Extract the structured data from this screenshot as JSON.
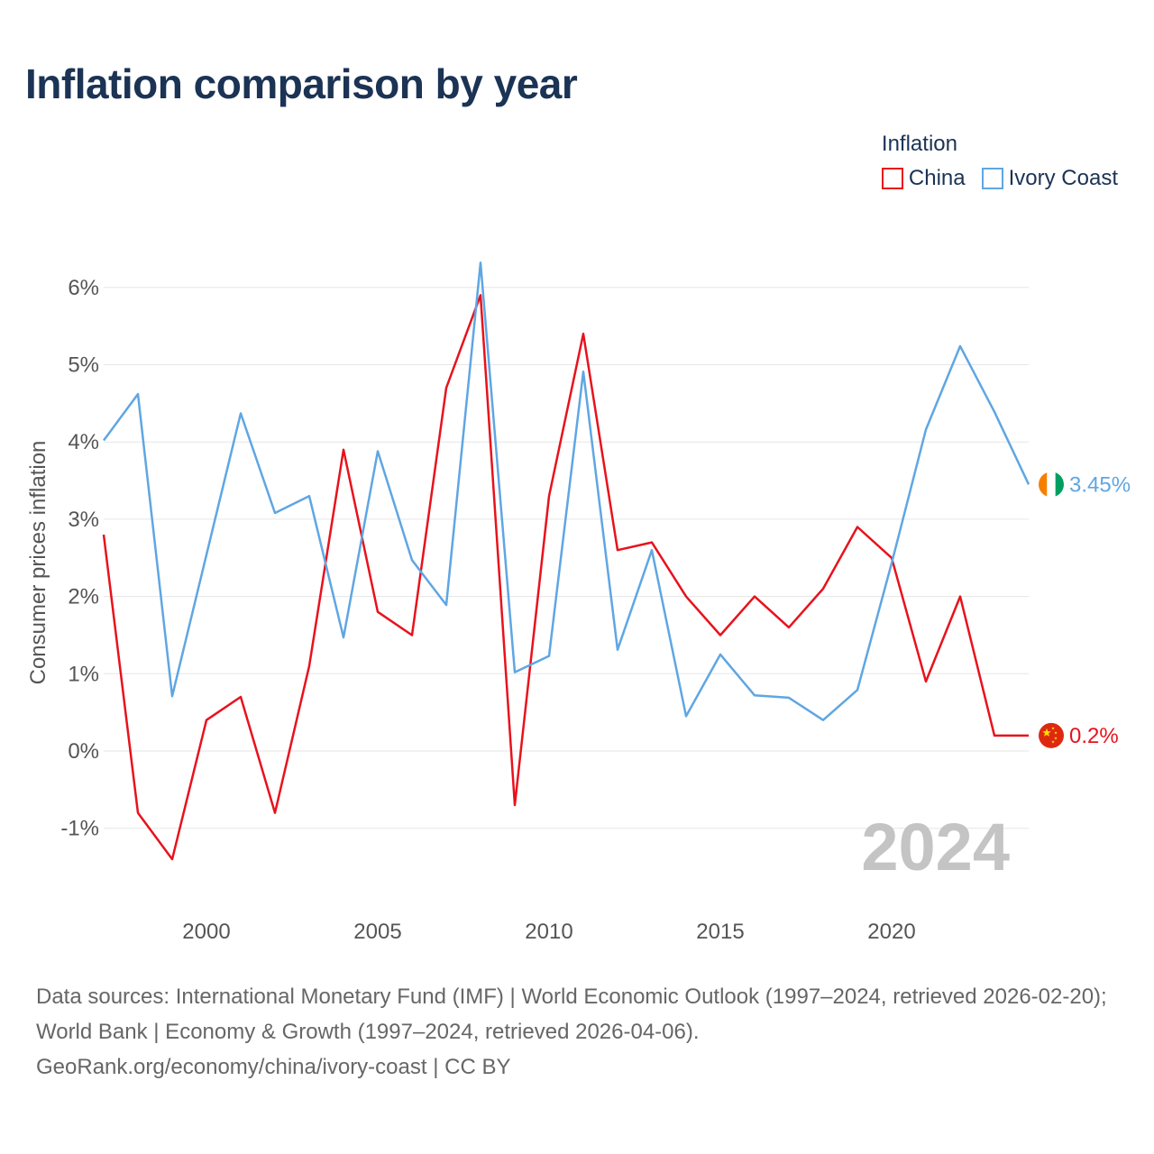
{
  "title": "Inflation comparison by year",
  "legend": {
    "title": "Inflation",
    "items": [
      {
        "label": "China",
        "color": "#e8121c"
      },
      {
        "label": "Ivory Coast",
        "color": "#5fa6e3"
      }
    ]
  },
  "source": {
    "line1": "Data sources: International Monetary Fund (IMF) | World Economic Outlook (1997–2024, retrieved 2026-02-20); World Bank | Economy & Growth (1997–2024, retrieved 2026-04-06).",
    "line2": "GeoRank.org/economy/china/ivory-coast | CC BY"
  },
  "chart_data": {
    "type": "line",
    "title": "Inflation comparison by year",
    "xlabel": "",
    "ylabel": "Consumer prices inflation",
    "x": [
      1997,
      1998,
      1999,
      2000,
      2001,
      2002,
      2003,
      2004,
      2005,
      2006,
      2007,
      2008,
      2009,
      2010,
      2011,
      2012,
      2013,
      2014,
      2015,
      2016,
      2017,
      2018,
      2019,
      2020,
      2021,
      2022,
      2023,
      2024
    ],
    "xlim": [
      1997,
      2024
    ],
    "ylim": [
      -1.8,
      6.4
    ],
    "x_ticks": [
      2000,
      2005,
      2010,
      2015,
      2020
    ],
    "y_ticks": [
      -1,
      0,
      1,
      2,
      3,
      4,
      5,
      6
    ],
    "y_tick_labels": [
      "-1%",
      "0%",
      "1%",
      "2%",
      "3%",
      "4%",
      "5%",
      "6%"
    ],
    "grid": true,
    "year_watermark": "2024",
    "series": [
      {
        "name": "China",
        "color": "#e8121c",
        "end_label": "0.2%",
        "flag": "china-flag",
        "values": [
          2.8,
          -0.8,
          -1.4,
          0.4,
          0.7,
          -0.8,
          1.1,
          3.9,
          1.8,
          1.5,
          4.7,
          5.9,
          -0.7,
          3.3,
          5.4,
          2.6,
          2.7,
          2.0,
          1.5,
          2.0,
          1.6,
          2.1,
          2.9,
          2.5,
          0.9,
          2.0,
          0.2,
          0.2
        ]
      },
      {
        "name": "Ivory Coast",
        "color": "#5fa6e3",
        "end_label": "3.45%",
        "flag": "ivory-coast-flag",
        "values": [
          4.02,
          4.62,
          0.71,
          2.54,
          4.37,
          3.08,
          3.3,
          1.47,
          3.88,
          2.47,
          1.89,
          6.32,
          1.02,
          1.23,
          4.91,
          1.31,
          2.6,
          0.45,
          1.25,
          0.72,
          0.69,
          0.4,
          0.79,
          2.43,
          4.16,
          5.24,
          4.39,
          3.45
        ]
      }
    ]
  }
}
